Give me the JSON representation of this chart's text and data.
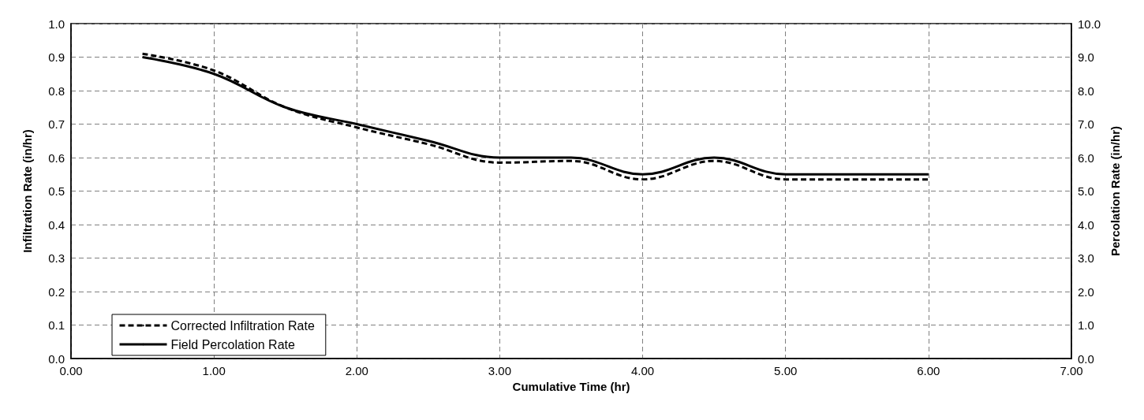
{
  "chart_data": {
    "type": "line",
    "xlabel": "Cumulative Time (hr)",
    "ylabel": "Infiltration Rate (in/hr)",
    "y2label": "Percolation Rate (in/hr)",
    "x": [
      0.5,
      1.0,
      1.5,
      2.0,
      2.5,
      3.0,
      3.5,
      4.0,
      4.5,
      5.0,
      5.5,
      6.0
    ],
    "series": [
      {
        "name": "Corrected Infiltration Rate",
        "color": "#000000",
        "line_style": "dashed",
        "values": [
          0.91,
          0.86,
          0.75,
          0.69,
          0.64,
          0.585,
          0.59,
          0.535,
          0.59,
          0.535,
          0.535,
          0.535
        ]
      },
      {
        "name": "Field Percolation Rate",
        "color": "#000000",
        "line_style": "solid",
        "axis": "y2",
        "values": [
          9.0,
          8.5,
          7.5,
          7.0,
          6.5,
          6.0,
          6.0,
          5.5,
          6.0,
          5.5,
          5.5,
          5.5
        ]
      }
    ],
    "xlim": [
      0,
      7
    ],
    "xticks": [
      {
        "value": 0,
        "label": "0.00"
      },
      {
        "value": 1,
        "label": "1.00"
      },
      {
        "value": 2,
        "label": "2.00"
      },
      {
        "value": 3,
        "label": "3.00"
      },
      {
        "value": 4,
        "label": "4.00"
      },
      {
        "value": 5,
        "label": "5.00"
      },
      {
        "value": 6,
        "label": "6.00"
      },
      {
        "value": 7,
        "label": "7.00"
      }
    ],
    "ylim": [
      0,
      1
    ],
    "yticks": [
      {
        "value": 0,
        "label": "0.0"
      },
      {
        "value": 0.1,
        "label": "0.1"
      },
      {
        "value": 0.2,
        "label": "0.2"
      },
      {
        "value": 0.3,
        "label": "0.3"
      },
      {
        "value": 0.4,
        "label": "0.4"
      },
      {
        "value": 0.5,
        "label": "0.5"
      },
      {
        "value": 0.6,
        "label": "0.6"
      },
      {
        "value": 0.7,
        "label": "0.7"
      },
      {
        "value": 0.8,
        "label": "0.8"
      },
      {
        "value": 0.9,
        "label": "0.9"
      },
      {
        "value": 1,
        "label": "1.0"
      }
    ],
    "y2lim": [
      0,
      10
    ],
    "y2ticks": [
      {
        "value": 0,
        "label": "0.0"
      },
      {
        "value": 1,
        "label": "1.0"
      },
      {
        "value": 2,
        "label": "2.0"
      },
      {
        "value": 3,
        "label": "3.0"
      },
      {
        "value": 4,
        "label": "4.0"
      },
      {
        "value": 5,
        "label": "5.0"
      },
      {
        "value": 6,
        "label": "6.0"
      },
      {
        "value": 7,
        "label": "7.0"
      },
      {
        "value": 8,
        "label": "8.0"
      },
      {
        "value": 9,
        "label": "9.0"
      },
      {
        "value": 10,
        "label": "10.0"
      }
    ],
    "grid": true,
    "legend": "bottom left",
    "marker": "none"
  }
}
